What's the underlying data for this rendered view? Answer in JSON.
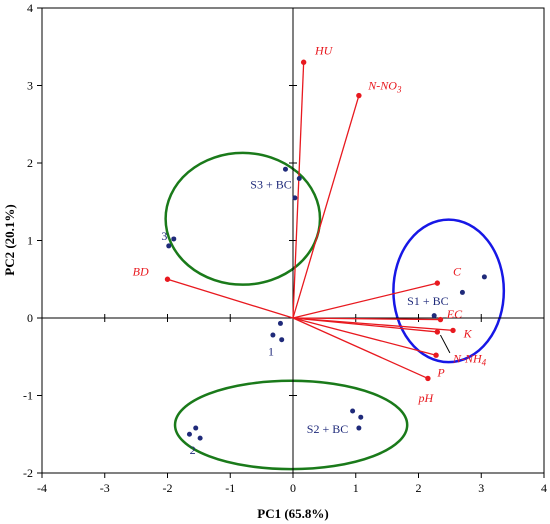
{
  "chart_data": {
    "type": "scatter",
    "title": "",
    "xlabel": "PC1 (65.8%)",
    "ylabel": "PC2 (20.1%)",
    "xlim": [
      -4,
      4
    ],
    "ylim": [
      -2,
      4
    ],
    "xticks": [
      "-4",
      "-3",
      "-2",
      "-1",
      "0",
      "1",
      "2",
      "3",
      "4"
    ],
    "yticks": [
      "-2",
      "-1",
      "0",
      "1",
      "2",
      "3",
      "4"
    ],
    "grid": false,
    "colors": {
      "points": "#1f2a7a",
      "vectors": "#e8191f",
      "axis": "#000000"
    },
    "points": [
      {
        "x": -0.12,
        "y": 1.92
      },
      {
        "x": 0.1,
        "y": 1.8
      },
      {
        "x": 0.03,
        "y": 1.55
      },
      {
        "x": -1.9,
        "y": 1.02
      },
      {
        "x": -1.98,
        "y": 0.93
      },
      {
        "x": 2.25,
        "y": 0.03
      },
      {
        "x": 2.7,
        "y": 0.33
      },
      {
        "x": 3.05,
        "y": 0.53
      },
      {
        "x": -0.2,
        "y": -0.07
      },
      {
        "x": -0.32,
        "y": -0.22
      },
      {
        "x": -0.18,
        "y": -0.28
      },
      {
        "x": 0.95,
        "y": -1.2
      },
      {
        "x": 1.08,
        "y": -1.28
      },
      {
        "x": 1.05,
        "y": -1.42
      },
      {
        "x": -1.55,
        "y": -1.42
      },
      {
        "x": -1.65,
        "y": -1.5
      },
      {
        "x": -1.48,
        "y": -1.55
      }
    ],
    "group_labels": [
      {
        "text": "S3 + BC",
        "x": -0.35,
        "y": 1.72
      },
      {
        "text": "3",
        "x": -2.05,
        "y": 1.06
      },
      {
        "text": "S1 + BC",
        "x": 2.15,
        "y": 0.22
      },
      {
        "text": "1",
        "x": -0.35,
        "y": -0.43
      },
      {
        "text": "S2 + BC",
        "x": 0.55,
        "y": -1.43
      },
      {
        "text": "2",
        "x": -1.6,
        "y": -1.7
      }
    ],
    "ellipses": [
      {
        "name": "S3 + BC",
        "cx": -0.8,
        "cy": 1.28,
        "rx": 1.23,
        "ry": 0.85,
        "color": "#1a7a1a"
      },
      {
        "name": "S1 + BC",
        "cx": 2.48,
        "cy": 0.35,
        "rx": 0.88,
        "ry": 0.92,
        "color": "#1717e6"
      },
      {
        "name": "S2 + BC",
        "cx": -0.03,
        "cy": -1.38,
        "rx": 1.85,
        "ry": 0.57,
        "color": "#1a7a1a"
      }
    ],
    "loadings": [
      {
        "label": "HU",
        "x": 0.17,
        "y": 3.3,
        "lx": 0.35,
        "ly": 3.45,
        "anchor": "start"
      },
      {
        "label": "N-NO",
        "sub": "3",
        "x": 1.05,
        "y": 2.87,
        "lx": 1.2,
        "ly": 3.0,
        "anchor": "start"
      },
      {
        "label": "C",
        "x": 2.3,
        "y": 0.45,
        "lx": 2.55,
        "ly": 0.6,
        "anchor": "start"
      },
      {
        "label": "EC",
        "x": 2.35,
        "y": -0.02,
        "lx": 2.45,
        "ly": 0.05,
        "anchor": "start"
      },
      {
        "label": "K",
        "x": 2.55,
        "y": -0.16,
        "lx": 2.72,
        "ly": -0.2,
        "anchor": "start"
      },
      {
        "label": "N-NH",
        "sub": "4",
        "x": 2.3,
        "y": -0.18,
        "lx": 2.55,
        "ly": -0.52,
        "anchor": "start",
        "leader": [
          2.35,
          -0.22,
          2.5,
          -0.45
        ]
      },
      {
        "label": "P",
        "x": 2.28,
        "y": -0.48,
        "lx": 2.3,
        "ly": -0.7,
        "anchor": "start"
      },
      {
        "label": "pH",
        "x": 2.15,
        "y": -0.78,
        "lx": 2.0,
        "ly": -1.03,
        "anchor": "start"
      },
      {
        "label": "BD",
        "x": -2.0,
        "y": 0.5,
        "lx": -2.3,
        "ly": 0.6,
        "anchor": "end"
      }
    ]
  }
}
